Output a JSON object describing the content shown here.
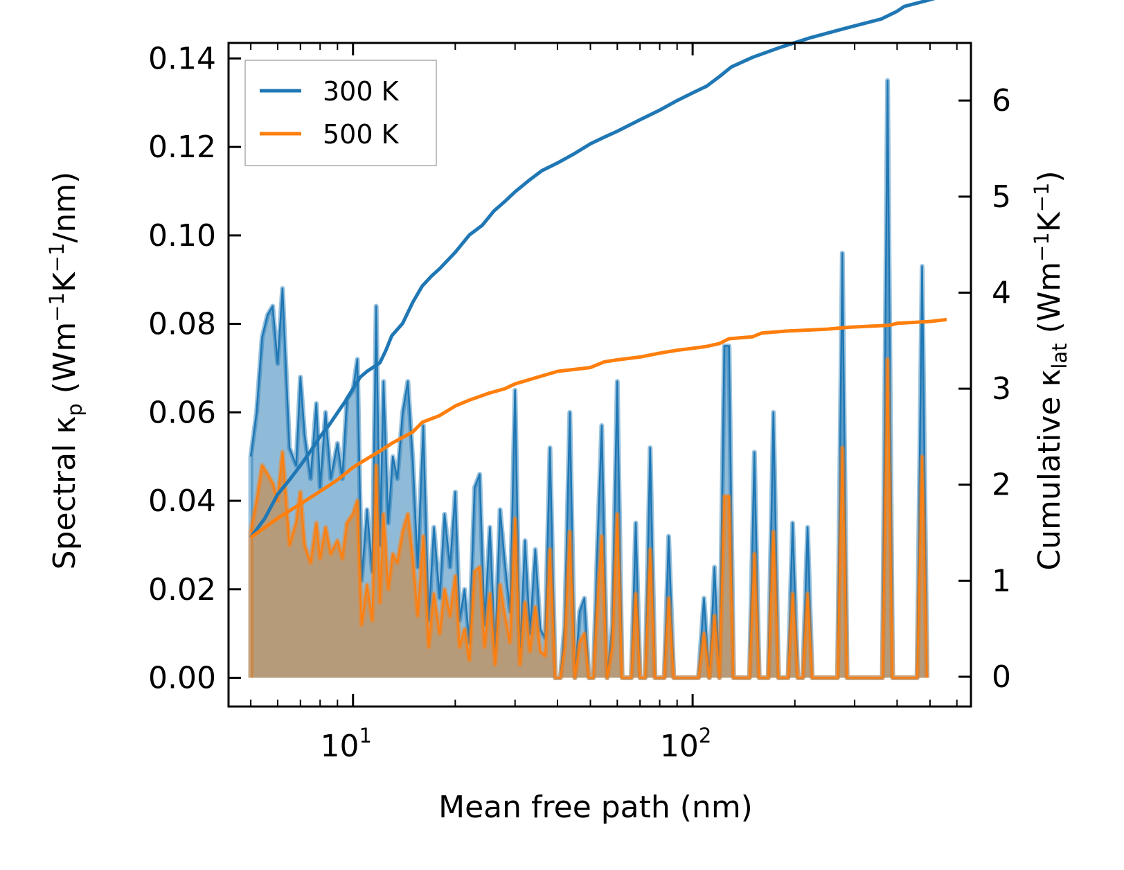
{
  "chart_data": {
    "type": "line",
    "xscale": "log",
    "xlabel": "Mean free path (nm)",
    "ylabel_left": {
      "main": "Spectral κ",
      "sub": "p",
      "open": " (Wm",
      "sup1": "−1",
      "mid": "K",
      "sup2": "−1",
      "close": "/nm)"
    },
    "ylabel_right": {
      "main": "Cumulative κ",
      "sub": "lat",
      "open": " (Wm",
      "sup1": "−1",
      "mid": "K",
      "sup2": "−1",
      "close": ")"
    },
    "xlim": [
      4.3,
      660
    ],
    "ylim_left": [
      -0.0065,
      0.1435
    ],
    "ylim_right": [
      -0.31,
      6.6
    ],
    "x_ticks": [
      {
        "value": 10,
        "base": "10",
        "exp": "1"
      },
      {
        "value": 100,
        "base": "10",
        "exp": "2"
      }
    ],
    "y_ticks_left": [
      "0.00",
      "0.02",
      "0.04",
      "0.06",
      "0.08",
      "0.10",
      "0.12",
      "0.14"
    ],
    "y_ticks_right": [
      "0",
      "1",
      "2",
      "3",
      "4",
      "5",
      "6"
    ],
    "legend": [
      {
        "name": "300 K",
        "color": "#1f77b4"
      },
      {
        "name": "500 K",
        "color": "#ff7f0e"
      }
    ],
    "legend_position": "top-left",
    "spectral_x": [
      5.0,
      5.2,
      5.4,
      5.6,
      5.8,
      6.0,
      6.2,
      6.5,
      6.8,
      7.0,
      7.2,
      7.5,
      7.8,
      8.0,
      8.3,
      8.6,
      9.0,
      9.3,
      9.6,
      10.0,
      10.3,
      10.6,
      11.0,
      11.4,
      11.7,
      12.0,
      12.3,
      12.7,
      13.1,
      13.5,
      14.0,
      14.5,
      15.0,
      15.5,
      16.1,
      16.7,
      17.3,
      18.0,
      18.6,
      19.3,
      20.0,
      20.6,
      21.3,
      22.0,
      22.8,
      23.6,
      24.4,
      25.3,
      26.2,
      27.1,
      28.0,
      29.0,
      30.0,
      31.0,
      32.1,
      33.2,
      34.4,
      35.6,
      36.8,
      38.0,
      39.4,
      40.8,
      42.0,
      43.5,
      45.0,
      46.5,
      48.0,
      49.5,
      51.0,
      52.5,
      54.0,
      56.0,
      58.0,
      60.0,
      62.0,
      64.0,
      66.0,
      68.0,
      70.0,
      72.5,
      75.0,
      77.5,
      80.0,
      82.5,
      85.0,
      88.0,
      91.0,
      94.0,
      97.0,
      100.0,
      104.0,
      108.0,
      112.0,
      116.0,
      120.0,
      124.0,
      128.0,
      132.0,
      137.0,
      142.0,
      147.0,
      152.0,
      157.0,
      162.0,
      167.0,
      173.0,
      179.0,
      185.0,
      191.0,
      197.0,
      204.0,
      211.0,
      218.0,
      225.0,
      233.0,
      241.0,
      249.0,
      258.0,
      267.0,
      276.0,
      285.0,
      295.0,
      305.0,
      316.0,
      327.0,
      338.0,
      350.0,
      362.0,
      375.0,
      388.0,
      400.0,
      414.0,
      428.0,
      443.0,
      458.0,
      474.0,
      490.0,
      507.0,
      525.0,
      543.0,
      560.0
    ],
    "series": [
      {
        "name": "300 K",
        "color": "#1f77b4",
        "spectral": [
          0.05,
          0.06,
          0.077,
          0.082,
          0.084,
          0.071,
          0.088,
          0.052,
          0.048,
          0.068,
          0.055,
          0.045,
          0.062,
          0.043,
          0.06,
          0.045,
          0.053,
          0.045,
          0.063,
          0.065,
          0.072,
          0.022,
          0.038,
          0.024,
          0.084,
          0.03,
          0.067,
          0.035,
          0.05,
          0.045,
          0.06,
          0.067,
          0.049,
          0.025,
          0.057,
          0.013,
          0.034,
          0.018,
          0.037,
          0.025,
          0.042,
          0.013,
          0.02,
          0.008,
          0.043,
          0.046,
          0.012,
          0.034,
          0.006,
          0.038,
          0.026,
          0.015,
          0.065,
          0.005,
          0.031,
          0.01,
          0.029,
          0.011,
          0.009,
          0.052,
          0.0,
          0.0,
          0.012,
          0.06,
          0.0,
          0.015,
          0.018,
          0.0,
          0.0,
          0.031,
          0.057,
          0.0,
          0.012,
          0.067,
          0.0,
          0.0,
          0.0,
          0.035,
          0.0,
          0.0,
          0.052,
          0.0,
          0.0,
          0.0,
          0.032,
          0.0,
          0.0,
          0.0,
          0.0,
          0.0,
          0.0,
          0.018,
          0.0,
          0.025,
          0.0,
          0.075,
          0.075,
          0.0,
          0.0,
          0.0,
          0.0,
          0.051,
          0.0,
          0.0,
          0.0,
          0.06,
          0.0,
          0.0,
          0.0,
          0.035,
          0.0,
          0.0,
          0.034,
          0.0,
          0.0,
          0.0,
          0.0,
          0.0,
          0.0,
          0.096,
          0.0,
          0.0,
          0.0,
          0.0,
          0.0,
          0.0,
          0.0,
          0.0,
          0.135,
          0.0,
          0.0,
          0.0,
          0.0,
          0.0,
          0.0,
          0.093,
          0.0
        ],
        "cumulative": [
          [
            5.0,
            1.45
          ],
          [
            5.5,
            1.65
          ],
          [
            6.0,
            1.9
          ],
          [
            6.5,
            2.05
          ],
          [
            7.0,
            2.2
          ],
          [
            7.5,
            2.35
          ],
          [
            8.0,
            2.5
          ],
          [
            8.5,
            2.62
          ],
          [
            9.0,
            2.75
          ],
          [
            9.5,
            2.87
          ],
          [
            10.0,
            3.0
          ],
          [
            10.5,
            3.12
          ],
          [
            11.0,
            3.18
          ],
          [
            12.0,
            3.27
          ],
          [
            12.5,
            3.4
          ],
          [
            13.0,
            3.55
          ],
          [
            14.0,
            3.68
          ],
          [
            15.0,
            3.9
          ],
          [
            16.0,
            4.07
          ],
          [
            17.0,
            4.17
          ],
          [
            18.0,
            4.25
          ],
          [
            20.0,
            4.42
          ],
          [
            22.0,
            4.6
          ],
          [
            24.0,
            4.7
          ],
          [
            26.0,
            4.85
          ],
          [
            28.0,
            4.95
          ],
          [
            30.0,
            5.05
          ],
          [
            33.0,
            5.17
          ],
          [
            36.0,
            5.27
          ],
          [
            40.0,
            5.35
          ],
          [
            45.0,
            5.45
          ],
          [
            50.0,
            5.55
          ],
          [
            55.0,
            5.62
          ],
          [
            60.0,
            5.68
          ],
          [
            70.0,
            5.8
          ],
          [
            80.0,
            5.9
          ],
          [
            90.0,
            6.0
          ],
          [
            100.0,
            6.08
          ],
          [
            110.0,
            6.15
          ],
          [
            120.0,
            6.25
          ],
          [
            130.0,
            6.35
          ],
          [
            150.0,
            6.45
          ],
          [
            180.0,
            6.55
          ],
          [
            220.0,
            6.65
          ],
          [
            280.0,
            6.75
          ],
          [
            360.0,
            6.85
          ],
          [
            400.0,
            6.93
          ],
          [
            420.0,
            6.98
          ],
          [
            500.0,
            7.05
          ],
          [
            560.0,
            7.1
          ]
        ]
      },
      {
        "name": "500 K",
        "color": "#ff7f0e",
        "spectral": [
          0.033,
          0.04,
          0.048,
          0.046,
          0.044,
          0.04,
          0.051,
          0.03,
          0.035,
          0.042,
          0.03,
          0.026,
          0.035,
          0.027,
          0.034,
          0.028,
          0.031,
          0.027,
          0.035,
          0.037,
          0.04,
          0.012,
          0.021,
          0.013,
          0.048,
          0.017,
          0.037,
          0.02,
          0.028,
          0.026,
          0.033,
          0.037,
          0.027,
          0.014,
          0.032,
          0.007,
          0.019,
          0.01,
          0.02,
          0.014,
          0.023,
          0.007,
          0.011,
          0.004,
          0.024,
          0.025,
          0.007,
          0.019,
          0.003,
          0.021,
          0.014,
          0.008,
          0.036,
          0.003,
          0.017,
          0.006,
          0.016,
          0.006,
          0.005,
          0.029,
          0.0,
          0.0,
          0.007,
          0.033,
          0.0,
          0.008,
          0.01,
          0.0,
          0.0,
          0.017,
          0.032,
          0.0,
          0.007,
          0.037,
          0.0,
          0.0,
          0.0,
          0.019,
          0.0,
          0.0,
          0.029,
          0.0,
          0.0,
          0.0,
          0.018,
          0.0,
          0.0,
          0.0,
          0.0,
          0.0,
          0.0,
          0.01,
          0.0,
          0.014,
          0.0,
          0.041,
          0.041,
          0.0,
          0.0,
          0.0,
          0.0,
          0.028,
          0.0,
          0.0,
          0.0,
          0.033,
          0.0,
          0.0,
          0.0,
          0.019,
          0.0,
          0.0,
          0.019,
          0.0,
          0.0,
          0.0,
          0.0,
          0.0,
          0.0,
          0.052,
          0.0,
          0.0,
          0.0,
          0.0,
          0.0,
          0.0,
          0.0,
          0.0,
          0.072,
          0.0,
          0.0,
          0.0,
          0.0,
          0.0,
          0.0,
          0.05,
          0.0
        ],
        "cumulative": [
          [
            5.0,
            1.45
          ],
          [
            6.0,
            1.65
          ],
          [
            7.0,
            1.8
          ],
          [
            8.0,
            1.93
          ],
          [
            9.0,
            2.05
          ],
          [
            10.0,
            2.18
          ],
          [
            11.0,
            2.27
          ],
          [
            12.0,
            2.35
          ],
          [
            13.0,
            2.43
          ],
          [
            15.0,
            2.55
          ],
          [
            16.0,
            2.65
          ],
          [
            18.0,
            2.72
          ],
          [
            20.0,
            2.82
          ],
          [
            22.0,
            2.88
          ],
          [
            25.0,
            2.95
          ],
          [
            28.0,
            3.0
          ],
          [
            30.0,
            3.05
          ],
          [
            35.0,
            3.12
          ],
          [
            40.0,
            3.18
          ],
          [
            50.0,
            3.22
          ],
          [
            55.0,
            3.28
          ],
          [
            60.0,
            3.3
          ],
          [
            70.0,
            3.33
          ],
          [
            80.0,
            3.37
          ],
          [
            90.0,
            3.4
          ],
          [
            100.0,
            3.42
          ],
          [
            110.0,
            3.44
          ],
          [
            120.0,
            3.47
          ],
          [
            128.0,
            3.52
          ],
          [
            150.0,
            3.54
          ],
          [
            160.0,
            3.58
          ],
          [
            190.0,
            3.6
          ],
          [
            250.0,
            3.62
          ],
          [
            290.0,
            3.64
          ],
          [
            380.0,
            3.66
          ],
          [
            400.0,
            3.68
          ],
          [
            500.0,
            3.7
          ],
          [
            560.0,
            3.72
          ]
        ]
      }
    ]
  }
}
